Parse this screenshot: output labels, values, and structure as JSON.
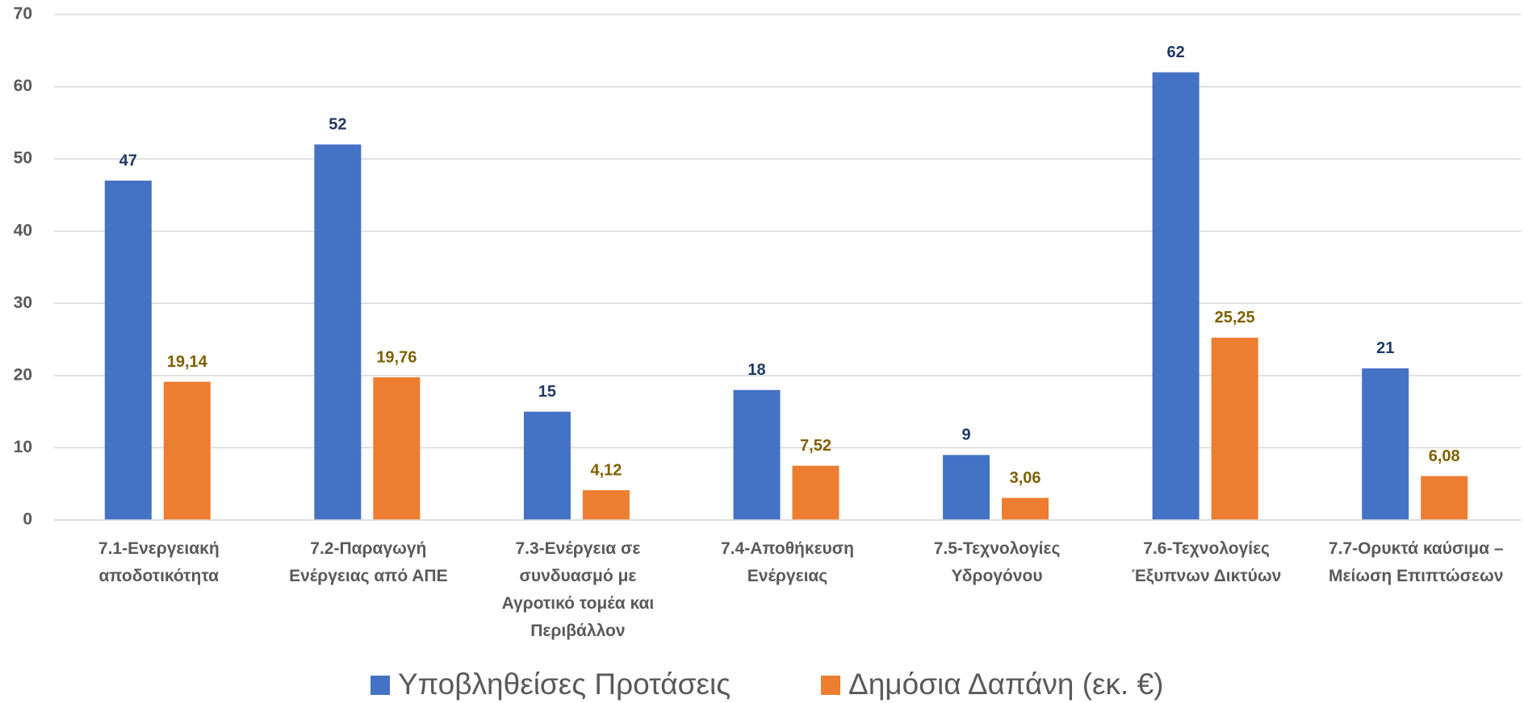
{
  "chart_data": {
    "type": "bar",
    "categories": [
      "7.1-Ενεργειακή αποδοτικότητα",
      "7.2-Παραγωγή Ενέργειας από ΑΠΕ",
      "7.3-Ενέργεια σε συνδυασμό με Αγροτικό τομέα και Περιβάλλον",
      "7.4-Αποθήκευση Ενέργειας",
      "7.5-Τεχνολογίες Υδρογόνου",
      "7.6-Τεχνολογίες Έξυπνων Δικτύων",
      "7.7-Ορυκτά καύσιμα – Μείωση Επιπτώσεων"
    ],
    "series": [
      {
        "name": "Υποβληθείσες Προτάσεις",
        "color": "#4472c4",
        "label_color": "#1f3864",
        "values": [
          47,
          52,
          15,
          18,
          9,
          62,
          21
        ]
      },
      {
        "name": "Δημόσια Δαπάνη (εκ. €)",
        "color": "#ed7d31",
        "label_color": "#806000",
        "values": [
          19.14,
          19.76,
          4.12,
          7.52,
          3.06,
          25.25,
          6.08
        ],
        "value_labels": [
          "19,14",
          "19,76",
          "4,12",
          "7,52",
          "3,06",
          "25,25",
          "6,08"
        ]
      }
    ],
    "ylim": [
      0,
      70
    ],
    "yticks": [
      0,
      10,
      20,
      30,
      40,
      50,
      60,
      70
    ],
    "grid": true,
    "legend": "bottom"
  }
}
